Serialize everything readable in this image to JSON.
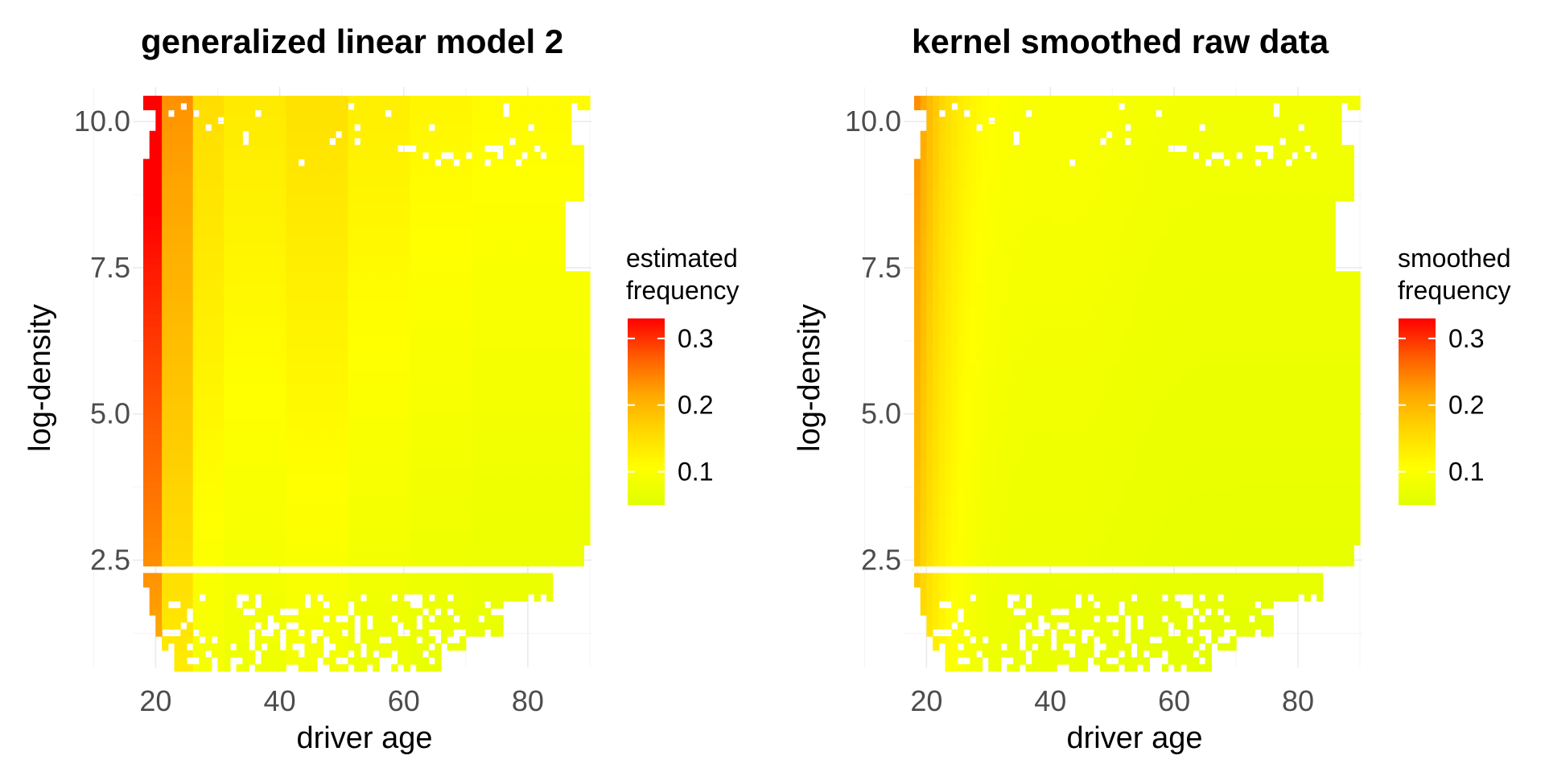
{
  "chart_data": [
    {
      "type": "heatmap",
      "title": "generalized linear model 2",
      "xlabel": "driver age",
      "ylabel": "log-density",
      "x_range": [
        18,
        90
      ],
      "y_range": [
        0.5,
        10.4
      ],
      "xticks": [
        20,
        40,
        60,
        80
      ],
      "yticks": [
        2.5,
        5.0,
        7.5,
        10.0
      ],
      "ytick_labels": [
        "2.5",
        "5.0",
        "7.5",
        "10.0"
      ],
      "legend": {
        "title_lines": [
          "estimated",
          "frequency"
        ],
        "ticks": [
          0.1,
          0.2,
          0.3
        ],
        "tick_labels": [
          "0.1",
          "0.2",
          "0.3"
        ],
        "range": [
          0.05,
          0.33
        ],
        "colors": [
          "#dfff00",
          "#ffff00",
          "#ffd700",
          "#ffa500",
          "#ff5a00",
          "#ff0000"
        ],
        "placement": "right"
      },
      "model": "glm",
      "grid": true
    },
    {
      "type": "heatmap",
      "title": "kernel smoothed raw data",
      "xlabel": "driver age",
      "ylabel": "log-density",
      "x_range": [
        18,
        90
      ],
      "y_range": [
        0.5,
        10.4
      ],
      "xticks": [
        20,
        40,
        60,
        80
      ],
      "yticks": [
        2.5,
        5.0,
        7.5,
        10.0
      ],
      "ytick_labels": [
        "2.5",
        "5.0",
        "7.5",
        "10.0"
      ],
      "legend": {
        "title_lines": [
          "smoothed",
          "frequency"
        ],
        "ticks": [
          0.1,
          0.2,
          0.3
        ],
        "tick_labels": [
          "0.1",
          "0.2",
          "0.3"
        ],
        "range": [
          0.05,
          0.33
        ],
        "colors": [
          "#dfff00",
          "#ffff00",
          "#ffd700",
          "#ffa500",
          "#ff5a00",
          "#ff0000"
        ],
        "placement": "right"
      },
      "model": "kernel",
      "grid": true
    }
  ]
}
